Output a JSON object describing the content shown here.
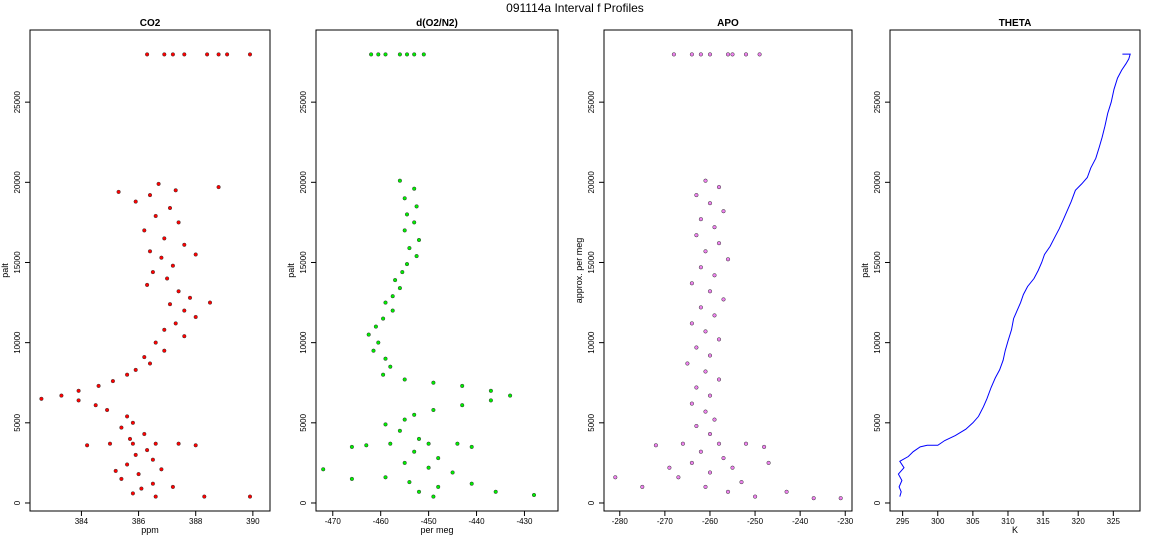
{
  "figure_title": "091114a   Interval f Profiles",
  "chart_data": [
    {
      "type": "scatter",
      "title": "CO2",
      "xlabel": "ppm",
      "ylabel": "palt",
      "xlim": [
        382.2,
        390.6
      ],
      "ylim": [
        -500,
        29500
      ],
      "xticks": [
        384,
        386,
        388,
        390
      ],
      "yticks": [
        0,
        5000,
        10000,
        15000,
        20000,
        25000
      ],
      "grid": false,
      "marker_color": "#ff0000",
      "points": [
        [
          389.9,
          27980
        ],
        [
          389.1,
          27980
        ],
        [
          388.4,
          27980
        ],
        [
          387.6,
          27980
        ],
        [
          386.9,
          27980
        ],
        [
          386.3,
          27980
        ],
        [
          388.8,
          27980
        ],
        [
          387.2,
          27980
        ],
        [
          386.7,
          19900
        ],
        [
          387.3,
          19500
        ],
        [
          386.4,
          19200
        ],
        [
          385.9,
          18800
        ],
        [
          387.1,
          18400
        ],
        [
          386.6,
          17900
        ],
        [
          387.4,
          17500
        ],
        [
          386.2,
          17000
        ],
        [
          386.9,
          16500
        ],
        [
          387.6,
          16100
        ],
        [
          386.4,
          15700
        ],
        [
          386.8,
          15300
        ],
        [
          387.2,
          14800
        ],
        [
          386.5,
          14400
        ],
        [
          387.0,
          14000
        ],
        [
          386.3,
          13600
        ],
        [
          387.4,
          13200
        ],
        [
          387.8,
          12800
        ],
        [
          387.1,
          12400
        ],
        [
          387.6,
          12000
        ],
        [
          388.0,
          11600
        ],
        [
          387.3,
          11200
        ],
        [
          386.9,
          10800
        ],
        [
          387.6,
          10400
        ],
        [
          386.6,
          10000
        ],
        [
          386.9,
          9500
        ],
        [
          386.2,
          9100
        ],
        [
          386.4,
          8700
        ],
        [
          385.9,
          8300
        ],
        [
          385.6,
          8000
        ],
        [
          385.1,
          7600
        ],
        [
          384.6,
          7300
        ],
        [
          383.9,
          7000
        ],
        [
          383.3,
          6700
        ],
        [
          383.9,
          6400
        ],
        [
          384.5,
          6100
        ],
        [
          384.9,
          5800
        ],
        [
          385.6,
          5400
        ],
        [
          385.8,
          5000
        ],
        [
          385.4,
          4700
        ],
        [
          386.2,
          4300
        ],
        [
          385.7,
          4000
        ],
        [
          385.0,
          3700
        ],
        [
          385.8,
          3700
        ],
        [
          386.6,
          3700
        ],
        [
          387.4,
          3700
        ],
        [
          384.2,
          3600
        ],
        [
          388.0,
          3600
        ],
        [
          386.3,
          3300
        ],
        [
          385.9,
          3000
        ],
        [
          386.5,
          2700
        ],
        [
          385.6,
          2400
        ],
        [
          386.8,
          2100
        ],
        [
          386.0,
          1800
        ],
        [
          385.4,
          1500
        ],
        [
          386.5,
          1200
        ],
        [
          386.1,
          900
        ],
        [
          385.8,
          600
        ],
        [
          386.6,
          400
        ],
        [
          387.2,
          1000
        ],
        [
          385.2,
          2000
        ],
        [
          388.3,
          400
        ],
        [
          389.9,
          400
        ],
        [
          382.6,
          6500
        ],
        [
          385.3,
          19400
        ],
        [
          388.8,
          19700
        ],
        [
          388.0,
          15500
        ],
        [
          388.5,
          12500
        ]
      ]
    },
    {
      "type": "scatter",
      "title": "d(O2/N2)",
      "xlabel": "per meg",
      "ylabel": "palt",
      "xlim": [
        -473.5,
        -423
      ],
      "ylim": [
        -500,
        29500
      ],
      "xticks": [
        -470,
        -460,
        -450,
        -440,
        -430
      ],
      "yticks": [
        0,
        5000,
        10000,
        15000,
        20000,
        25000
      ],
      "grid": false,
      "marker_color": "#00ee00",
      "points": [
        [
          -462,
          27980
        ],
        [
          -459,
          27980
        ],
        [
          -456,
          27980
        ],
        [
          -453,
          27980
        ],
        [
          -451,
          27980
        ],
        [
          -460.5,
          27980
        ],
        [
          -454.5,
          27980
        ],
        [
          -456,
          20100
        ],
        [
          -453,
          19600
        ],
        [
          -455,
          19000
        ],
        [
          -452.5,
          18500
        ],
        [
          -454.5,
          18000
        ],
        [
          -453,
          17500
        ],
        [
          -455,
          17000
        ],
        [
          -452,
          16400
        ],
        [
          -454,
          15900
        ],
        [
          -452.5,
          15400
        ],
        [
          -454.5,
          14900
        ],
        [
          -455.5,
          14400
        ],
        [
          -457,
          13900
        ],
        [
          -456,
          13400
        ],
        [
          -457.5,
          12900
        ],
        [
          -459,
          12500
        ],
        [
          -457.5,
          12000
        ],
        [
          -459.5,
          11500
        ],
        [
          -461,
          11000
        ],
        [
          -462.5,
          10500
        ],
        [
          -460.5,
          10000
        ],
        [
          -461.5,
          9500
        ],
        [
          -459,
          9000
        ],
        [
          -458,
          8500
        ],
        [
          -459.5,
          8000
        ],
        [
          -455,
          7700
        ],
        [
          -449,
          7500
        ],
        [
          -443,
          7300
        ],
        [
          -437,
          7000
        ],
        [
          -433,
          6700
        ],
        [
          -437,
          6400
        ],
        [
          -443,
          6100
        ],
        [
          -449,
          5800
        ],
        [
          -453,
          5500
        ],
        [
          -455,
          5200
        ],
        [
          -459,
          4900
        ],
        [
          -456,
          4500
        ],
        [
          -452,
          4000
        ],
        [
          -458,
          3700
        ],
        [
          -450,
          3700
        ],
        [
          -444,
          3700
        ],
        [
          -463,
          3600
        ],
        [
          -466,
          3500
        ],
        [
          -441,
          3500
        ],
        [
          -453,
          3200
        ],
        [
          -448,
          2800
        ],
        [
          -455,
          2500
        ],
        [
          -450,
          2200
        ],
        [
          -445,
          1900
        ],
        [
          -459,
          1600
        ],
        [
          -454,
          1300
        ],
        [
          -448,
          1000
        ],
        [
          -452,
          700
        ],
        [
          -449,
          400
        ],
        [
          -441,
          1200
        ],
        [
          -436,
          700
        ],
        [
          -466,
          1500
        ],
        [
          -472,
          2100
        ],
        [
          -428,
          500
        ]
      ]
    },
    {
      "type": "scatter",
      "title": "APO",
      "xlabel": "",
      "ylabel": "approx. per meg",
      "xlim": [
        -283.5,
        -228.5
      ],
      "ylim": [
        -500,
        29500
      ],
      "xticks": [
        -280,
        -270,
        -260,
        -250,
        -240,
        -230
      ],
      "yticks": [
        0,
        5000,
        10000,
        15000,
        20000,
        25000
      ],
      "grid": false,
      "marker_color": "#ee82ee",
      "points": [
        [
          -268,
          27980
        ],
        [
          -264,
          27980
        ],
        [
          -260,
          27980
        ],
        [
          -256,
          27980
        ],
        [
          -252,
          27980
        ],
        [
          -249,
          27980
        ],
        [
          -262,
          27980
        ],
        [
          -255,
          27980
        ],
        [
          -261,
          20100
        ],
        [
          -258,
          19700
        ],
        [
          -263,
          19200
        ],
        [
          -260,
          18700
        ],
        [
          -257,
          18200
        ],
        [
          -262,
          17700
        ],
        [
          -259,
          17200
        ],
        [
          -263,
          16700
        ],
        [
          -258,
          16200
        ],
        [
          -261,
          15700
        ],
        [
          -256,
          15200
        ],
        [
          -262,
          14700
        ],
        [
          -259,
          14200
        ],
        [
          -264,
          13700
        ],
        [
          -260,
          13200
        ],
        [
          -257,
          12700
        ],
        [
          -262,
          12200
        ],
        [
          -259,
          11700
        ],
        [
          -264,
          11200
        ],
        [
          -261,
          10700
        ],
        [
          -258,
          10200
        ],
        [
          -263,
          9700
        ],
        [
          -260,
          9200
        ],
        [
          -265,
          8700
        ],
        [
          -261,
          8200
        ],
        [
          -258,
          7700
        ],
        [
          -263,
          7200
        ],
        [
          -260,
          6700
        ],
        [
          -264,
          6200
        ],
        [
          -261,
          5700
        ],
        [
          -259,
          5200
        ],
        [
          -263,
          4800
        ],
        [
          -260,
          4300
        ],
        [
          -266,
          3700
        ],
        [
          -258,
          3700
        ],
        [
          -252,
          3700
        ],
        [
          -272,
          3600
        ],
        [
          -248,
          3500
        ],
        [
          -262,
          3200
        ],
        [
          -257,
          2800
        ],
        [
          -264,
          2500
        ],
        [
          -255,
          2200
        ],
        [
          -260,
          1900
        ],
        [
          -267,
          1600
        ],
        [
          -253,
          1300
        ],
        [
          -261,
          1000
        ],
        [
          -256,
          700
        ],
        [
          -250,
          400
        ],
        [
          -243,
          700
        ],
        [
          -237,
          300
        ],
        [
          -231,
          300
        ],
        [
          -281,
          1600
        ],
        [
          -275,
          1000
        ],
        [
          -269,
          2200
        ],
        [
          -247,
          2500
        ]
      ]
    },
    {
      "type": "line",
      "title": "THETA",
      "xlabel": "K",
      "ylabel": "palt",
      "xlim": [
        293.2,
        328.8
      ],
      "ylim": [
        -500,
        29500
      ],
      "xticks": [
        295,
        300,
        305,
        310,
        315,
        320,
        325
      ],
      "yticks": [
        0,
        5000,
        10000,
        15000,
        20000,
        25000
      ],
      "grid": false,
      "line_color": "#0000ff",
      "points": [
        [
          294.6,
          400
        ],
        [
          294.8,
          700
        ],
        [
          294.5,
          1000
        ],
        [
          294.9,
          1400
        ],
        [
          294.4,
          1800
        ],
        [
          295.2,
          2200
        ],
        [
          294.6,
          2600
        ],
        [
          295.8,
          2900
        ],
        [
          296.5,
          3200
        ],
        [
          297.5,
          3500
        ],
        [
          298.5,
          3600
        ],
        [
          300.0,
          3600
        ],
        [
          301.0,
          3900
        ],
        [
          302.5,
          4200
        ],
        [
          304.0,
          4600
        ],
        [
          305.0,
          5000
        ],
        [
          305.8,
          5400
        ],
        [
          306.5,
          6000
        ],
        [
          307.0,
          6500
        ],
        [
          307.6,
          7200
        ],
        [
          308.2,
          7800
        ],
        [
          308.8,
          8300
        ],
        [
          309.3,
          8900
        ],
        [
          309.6,
          9500
        ],
        [
          310.0,
          10100
        ],
        [
          310.5,
          10800
        ],
        [
          310.8,
          11500
        ],
        [
          311.3,
          12000
        ],
        [
          311.8,
          12500
        ],
        [
          312.2,
          13000
        ],
        [
          312.8,
          13500
        ],
        [
          313.7,
          14000
        ],
        [
          314.3,
          14500
        ],
        [
          314.8,
          15000
        ],
        [
          315.2,
          15500
        ],
        [
          316.0,
          16000
        ],
        [
          316.7,
          16600
        ],
        [
          317.3,
          17100
        ],
        [
          317.8,
          17600
        ],
        [
          318.4,
          18200
        ],
        [
          319.0,
          18800
        ],
        [
          319.6,
          19500
        ],
        [
          320.5,
          19900
        ],
        [
          321.3,
          20300
        ],
        [
          321.8,
          20900
        ],
        [
          322.5,
          21500
        ],
        [
          323.0,
          22200
        ],
        [
          323.4,
          22800
        ],
        [
          323.8,
          23500
        ],
        [
          324.2,
          24300
        ],
        [
          324.7,
          25000
        ],
        [
          325.1,
          25800
        ],
        [
          325.6,
          26500
        ],
        [
          326.2,
          27000
        ],
        [
          326.8,
          27400
        ],
        [
          327.2,
          27700
        ],
        [
          327.4,
          28000
        ],
        [
          326.3,
          28000
        ]
      ]
    }
  ]
}
